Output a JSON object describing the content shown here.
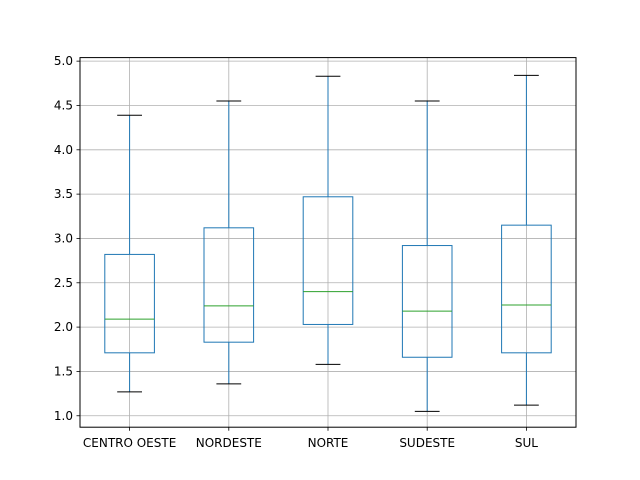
{
  "chart_data": {
    "type": "boxplot",
    "title": "",
    "xlabel": "",
    "ylabel": "",
    "categories": [
      "CENTRO OESTE",
      "NORDESTE",
      "NORTE",
      "SUDESTE",
      "SUL"
    ],
    "boxes": [
      {
        "name": "CENTRO OESTE",
        "whisker_low": 1.27,
        "q1": 1.71,
        "median": 2.09,
        "q3": 2.82,
        "whisker_high": 4.39
      },
      {
        "name": "NORDESTE",
        "whisker_low": 1.36,
        "q1": 1.83,
        "median": 2.24,
        "q3": 3.12,
        "whisker_high": 4.55
      },
      {
        "name": "NORTE",
        "whisker_low": 1.58,
        "q1": 2.03,
        "median": 2.4,
        "q3": 3.47,
        "whisker_high": 4.83
      },
      {
        "name": "SUDESTE",
        "whisker_low": 1.05,
        "q1": 1.66,
        "median": 2.18,
        "q3": 2.92,
        "whisker_high": 4.55
      },
      {
        "name": "SUL",
        "whisker_low": 1.12,
        "q1": 1.71,
        "median": 2.25,
        "q3": 3.15,
        "whisker_high": 4.84
      }
    ],
    "y_ticks": [
      "1.0",
      "1.5",
      "2.0",
      "2.5",
      "3.0",
      "3.5",
      "4.0",
      "4.5",
      "5.0"
    ],
    "ylim": [
      0.871,
      5.04
    ],
    "grid": true,
    "legend": "none",
    "colors": {
      "box": "#1f77b4",
      "median": "#2ca02c",
      "cap": "#000000",
      "grid": "#b0b0b0"
    }
  }
}
